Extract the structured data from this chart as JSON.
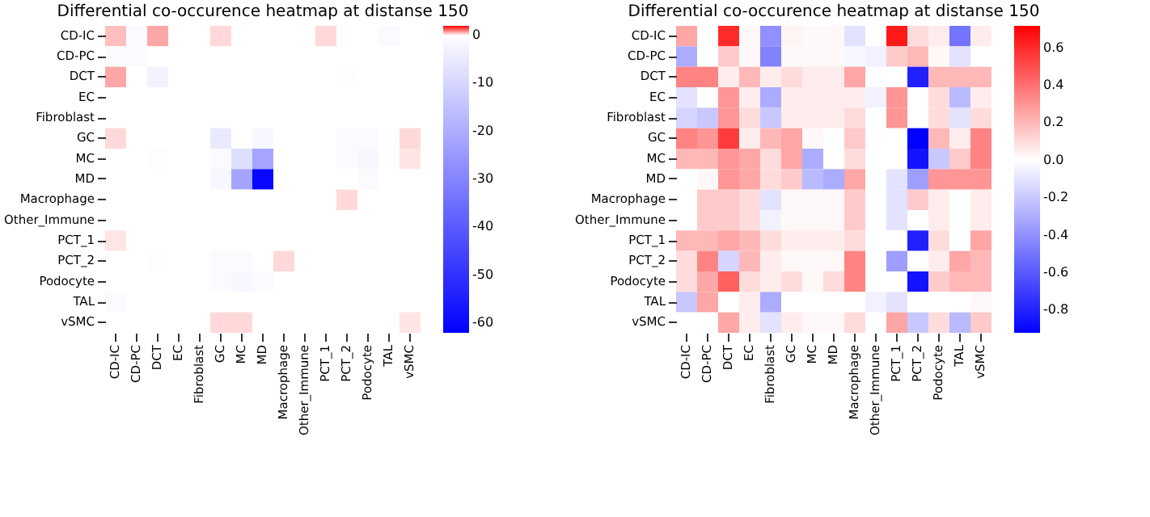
{
  "chart_data": [
    {
      "type": "heatmap",
      "title": "Differential co-occurence heatmap at distanse 150",
      "categories": [
        "CD-IC",
        "CD-PC",
        "DCT",
        "EC",
        "Fibroblast",
        "GC",
        "MC",
        "MD",
        "Macrophage",
        "Other_Immune",
        "PCT_1",
        "PCT_2",
        "Podocyte",
        "TAL",
        "vSMC"
      ],
      "y_categories": [
        "CD-IC",
        "CD-PC",
        "DCT",
        "EC",
        "Fibroblast",
        "GC",
        "MC",
        "MD",
        "Macrophage",
        "Other_Immune",
        "PCT_1",
        "PCT_2",
        "Podocyte",
        "TAL",
        "vSMC"
      ],
      "cells": [
        [
          0.5,
          -1,
          0.7,
          0,
          0,
          0.3,
          0,
          0,
          0,
          0,
          0.3,
          0,
          0,
          -1,
          0
        ],
        [
          -1,
          -1,
          0,
          0,
          0,
          0,
          0,
          0,
          0,
          0,
          0,
          0,
          0,
          0,
          0
        ],
        [
          0.7,
          0,
          -3,
          0,
          0,
          0,
          0,
          0,
          0,
          0,
          0,
          -0.5,
          0,
          0,
          0
        ],
        [
          0,
          0,
          0,
          0,
          0,
          0,
          0,
          0,
          0,
          0,
          0,
          0,
          0,
          0,
          0
        ],
        [
          0,
          0,
          0,
          0,
          0,
          0,
          0,
          0,
          0,
          0,
          0,
          0,
          0,
          0,
          0
        ],
        [
          0.3,
          0,
          0,
          0,
          0,
          -5,
          0,
          -2,
          0,
          0,
          0,
          -1,
          -1,
          0,
          0.3
        ],
        [
          0,
          0,
          -0.5,
          0,
          0,
          -1,
          -8,
          -22,
          0,
          0,
          0,
          -1,
          -2,
          0,
          0.2
        ],
        [
          0,
          0,
          0,
          0,
          0,
          -2,
          -22,
          -60,
          0,
          0,
          0,
          0,
          -1,
          0,
          0
        ],
        [
          0,
          0,
          0,
          0,
          0,
          0,
          0,
          0,
          0,
          0,
          0,
          0.3,
          0,
          0,
          0
        ],
        [
          0,
          0,
          0,
          0,
          0,
          0,
          0,
          0,
          0,
          0,
          0,
          0,
          0,
          0,
          0
        ],
        [
          0.2,
          0,
          0,
          0,
          0,
          0,
          0,
          0,
          0,
          0,
          0,
          0,
          0,
          0,
          0
        ],
        [
          0,
          0,
          -0.5,
          0,
          0,
          -1,
          -1,
          0,
          0.3,
          0,
          0,
          0,
          0,
          0,
          0
        ],
        [
          0,
          0,
          0,
          0,
          0,
          -1,
          -2,
          -1,
          0,
          0,
          0,
          0,
          0,
          0,
          0
        ],
        [
          -1,
          0,
          0,
          0,
          0,
          0,
          0,
          0,
          0,
          0,
          0,
          0,
          0,
          0,
          0
        ],
        [
          0,
          0,
          0,
          0,
          0,
          0.3,
          0.3,
          0,
          0,
          0,
          0,
          0,
          0,
          0,
          0.2
        ]
      ],
      "clim": [
        -62,
        2
      ],
      "cticks": [
        0,
        -10,
        -20,
        -30,
        -40,
        -50,
        -60
      ]
    },
    {
      "type": "heatmap",
      "title": "Differential co-occurence heatmap at distanse 150",
      "categories": [
        "CD-IC",
        "CD-PC",
        "DCT",
        "EC",
        "Fibroblast",
        "GC",
        "MC",
        "MD",
        "Macrophage",
        "Other_Immune",
        "PCT_1",
        "PCT_2",
        "Podocyte",
        "TAL",
        "vSMC"
      ],
      "y_categories": [
        "CD-IC",
        "CD-PC",
        "DCT",
        "EC",
        "Fibroblast",
        "GC",
        "MC",
        "MD",
        "Macrophage",
        "Other_Immune",
        "PCT_1",
        "PCT_2",
        "Podocyte",
        "TAL",
        "vSMC"
      ],
      "cells": [
        [
          0.25,
          0,
          0.6,
          0.02,
          -0.4,
          0.03,
          0.02,
          0.02,
          -0.1,
          0,
          0.65,
          0.1,
          0.05,
          -0.5,
          0.05
        ],
        [
          -0.3,
          0,
          0.15,
          0.02,
          -0.45,
          0.02,
          0.02,
          0.02,
          -0.03,
          -0.05,
          0.15,
          0.2,
          0.02,
          -0.1,
          0
        ],
        [
          0.35,
          0.35,
          0.05,
          0.2,
          0.05,
          0.1,
          0.05,
          0.05,
          0.25,
          0,
          0,
          -0.8,
          0.2,
          0.2,
          0.2
        ],
        [
          -0.1,
          0,
          0.3,
          0.05,
          -0.3,
          0.05,
          0.05,
          0.05,
          0.05,
          -0.05,
          0.3,
          0,
          0.1,
          -0.25,
          0.05
        ],
        [
          -0.15,
          -0.2,
          0.3,
          0.1,
          -0.2,
          0.05,
          0.05,
          0.05,
          0.1,
          0,
          0.3,
          0,
          0.1,
          -0.1,
          0.1
        ],
        [
          0.35,
          0.3,
          0.55,
          0.05,
          0.2,
          0.25,
          0.02,
          0,
          0.15,
          0,
          0,
          -0.95,
          0.2,
          0.05,
          0.35
        ],
        [
          0.2,
          0.2,
          0.3,
          0.25,
          0.1,
          0.25,
          -0.3,
          0,
          0.1,
          0,
          0,
          -0.85,
          -0.2,
          0.15,
          0.35
        ],
        [
          0,
          0.02,
          0.3,
          0.25,
          0.1,
          0.15,
          -0.25,
          -0.3,
          0.25,
          0,
          -0.1,
          -0.35,
          0.3,
          0.3,
          0.3
        ],
        [
          0,
          0.15,
          0.15,
          0.1,
          -0.1,
          0.02,
          0.02,
          0.02,
          0.15,
          0,
          -0.1,
          0.15,
          0.05,
          0,
          0.05
        ],
        [
          0,
          0.15,
          0.15,
          0.1,
          -0.05,
          0.02,
          0.02,
          0.02,
          0.15,
          0,
          -0.1,
          0,
          0.05,
          0,
          0.05
        ],
        [
          0.2,
          0.2,
          0.25,
          0.2,
          0.1,
          0.05,
          0.05,
          0.05,
          0.1,
          0,
          0,
          -0.8,
          0.1,
          0,
          0.25
        ],
        [
          0.1,
          0.35,
          -0.15,
          0.2,
          0.05,
          0.02,
          0.02,
          0.02,
          0.35,
          0,
          -0.35,
          0,
          0.05,
          0.25,
          0.2
        ],
        [
          0.1,
          0.25,
          0.45,
          0.1,
          0.05,
          0.1,
          0.02,
          0.1,
          0.35,
          0,
          0,
          -0.85,
          0.15,
          0.2,
          0.2
        ],
        [
          -0.2,
          0.25,
          0,
          0.05,
          -0.3,
          0,
          0,
          0,
          0,
          -0.05,
          -0.1,
          0,
          0,
          0,
          0.02
        ],
        [
          0,
          0,
          0.25,
          0.05,
          -0.1,
          0.05,
          0.02,
          0.02,
          0.1,
          0,
          0.25,
          -0.2,
          0.1,
          -0.25,
          0.15
        ]
      ],
      "clim": [
        -0.92,
        0.72
      ],
      "cticks": [
        0.6,
        0.4,
        0.2,
        {
          "value": 0,
          "label": "0.0"
        },
        -0.2,
        -0.4,
        -0.6,
        -0.8
      ]
    }
  ]
}
